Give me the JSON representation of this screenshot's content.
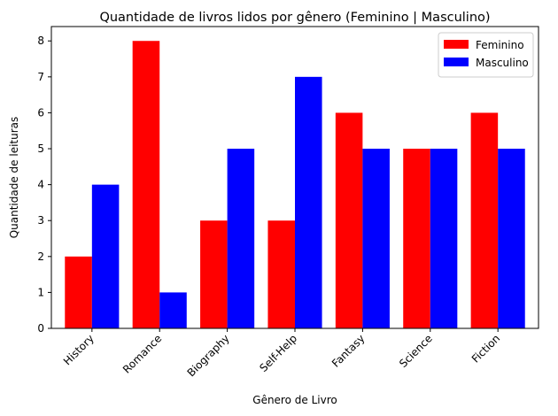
{
  "chart_data": {
    "type": "bar",
    "title": "Quantidade de livros lidos por gênero (Feminino | Masculino)",
    "xlabel": "Gênero de Livro",
    "ylabel": "Quantidade de leituras",
    "categories": [
      "History",
      "Romance",
      "Biography",
      "Self-Help",
      "Fantasy",
      "Science",
      "Fiction"
    ],
    "series": [
      {
        "name": "Feminino",
        "color": "#ff0000",
        "values": [
          2,
          8,
          3,
          3,
          6,
          5,
          6
        ]
      },
      {
        "name": "Masculino",
        "color": "#0000ff",
        "values": [
          4,
          1,
          5,
          7,
          5,
          5,
          5
        ]
      }
    ],
    "ylim": [
      0,
      8.4
    ],
    "yticks": [
      "0",
      "1",
      "2",
      "3",
      "4",
      "5",
      "6",
      "7",
      "8"
    ],
    "grid": false,
    "legend_position": "top-right"
  }
}
